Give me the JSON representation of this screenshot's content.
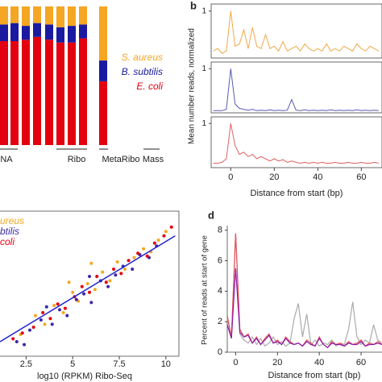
{
  "chart_data": [
    {
      "type": "stacked_bar",
      "categories": [
        null,
        null,
        null,
        null,
        null,
        null,
        null,
        null,
        null
      ],
      "groups": [
        "NA",
        "Ribo",
        "MetaRibo",
        "Mass"
      ],
      "series": [
        {
          "name": "E. coli",
          "color": "#e3000f",
          "values": [
            0.75,
            0.75,
            0.76,
            0.78,
            0.76,
            0.74,
            0.74,
            0.77,
            0.46
          ]
        },
        {
          "name": "B. subtilis",
          "color": "#1a1aa0",
          "values": [
            0.12,
            0.13,
            0.1,
            0.1,
            0.11,
            0.11,
            0.12,
            0.1,
            0.15
          ]
        },
        {
          "name": "S. aureus",
          "color": "#f5a623",
          "values": [
            0.13,
            0.12,
            0.14,
            0.12,
            0.13,
            0.15,
            0.14,
            0.13,
            0.39
          ]
        }
      ],
      "ylim": [
        0,
        1
      ]
    },
    {
      "type": "line_panels",
      "label": "b",
      "x_label": "Distance from start (bp)",
      "y_label": "Mean number reads, normalized",
      "x": [
        -8,
        -6,
        -4,
        -2,
        0,
        2,
        4,
        6,
        8,
        10,
        12,
        14,
        16,
        18,
        20,
        22,
        24,
        26,
        28,
        30,
        32,
        34,
        36,
        38,
        40,
        42,
        44,
        46,
        48,
        50,
        52,
        54,
        56,
        58,
        60,
        62,
        64,
        66,
        68
      ],
      "series": [
        {
          "color": "#f0a848",
          "values": [
            0.15,
            0.2,
            0.1,
            0.15,
            1.0,
            0.25,
            0.3,
            0.6,
            0.2,
            0.65,
            0.25,
            0.2,
            0.5,
            0.2,
            0.25,
            0.15,
            0.35,
            0.15,
            0.2,
            0.25,
            0.15,
            0.3,
            0.2,
            0.15,
            0.2,
            0.15,
            0.3,
            0.15,
            0.2,
            0.15,
            0.25,
            0.2,
            0.15,
            0.3,
            0.2,
            0.15,
            0.25,
            0.2,
            0.15
          ]
        },
        {
          "color": "#5a5ab4",
          "values": [
            0.05,
            0.05,
            0.05,
            0.08,
            1.0,
            0.2,
            0.1,
            0.08,
            0.06,
            0.08,
            0.05,
            0.06,
            0.05,
            0.07,
            0.05,
            0.06,
            0.05,
            0.06,
            0.3,
            0.06,
            0.05,
            0.07,
            0.05,
            0.06,
            0.05,
            0.06,
            0.05,
            0.07,
            0.05,
            0.06,
            0.05,
            0.06,
            0.05,
            0.07,
            0.05,
            0.06,
            0.05,
            0.06,
            0.05
          ]
        },
        {
          "color": "#e06060",
          "values": [
            0.1,
            0.1,
            0.12,
            0.2,
            1.0,
            0.5,
            0.3,
            0.35,
            0.25,
            0.3,
            0.2,
            0.25,
            0.2,
            0.15,
            0.2,
            0.15,
            0.18,
            0.12,
            0.15,
            0.12,
            0.1,
            0.12,
            0.1,
            0.12,
            0.1,
            0.12,
            0.1,
            0.1,
            0.12,
            0.1,
            0.1,
            0.12,
            0.1,
            0.1,
            0.12,
            0.1,
            0.1,
            0.12,
            0.1
          ]
        }
      ],
      "xlim": [
        -9,
        69.5
      ],
      "xticks": [
        0,
        20,
        40,
        60
      ],
      "ylim": [
        0,
        1.15
      ],
      "yticks": [
        1
      ]
    },
    {
      "type": "scatter",
      "x_label": "log10 (RPKM) Ribo-Seq",
      "series": [
        {
          "name": "ureus",
          "color": "#f5a623",
          "x": [
            2.2,
            3.0,
            3.5,
            4.0,
            4.5,
            5.0,
            5.3,
            5.8,
            6.2,
            6.6,
            7.0,
            7.4,
            7.8,
            8.3,
            8.8,
            9.2,
            9.6,
            10.0,
            4.8,
            6.0
          ],
          "values": [
            1.5,
            2.8,
            2.2,
            3.5,
            3.0,
            4.4,
            3.8,
            5.0,
            4.6,
            5.8,
            5.2,
            6.5,
            6.0,
            6.8,
            7.4,
            7.2,
            8.0,
            8.6,
            5.1,
            6.4
          ]
        },
        {
          "name": "btilis",
          "color": "#3a2aa8",
          "x": [
            2.0,
            2.7,
            3.3,
            3.9,
            4.3,
            4.7,
            5.2,
            5.6,
            6.0,
            6.5,
            6.9,
            7.3,
            7.7,
            8.2,
            8.6,
            9.1,
            9.5,
            2.4,
            3.6,
            5.9
          ],
          "values": [
            1.0,
            1.8,
            2.5,
            2.2,
            3.2,
            2.8,
            3.9,
            4.3,
            3.7,
            5.2,
            4.8,
            5.6,
            6.2,
            6.0,
            7.0,
            6.8,
            7.6,
            0.8,
            3.4,
            5.5
          ]
        },
        {
          "name": "coli",
          "color": "#e3000f",
          "x": [
            1.8,
            2.3,
            2.9,
            3.4,
            3.8,
            4.2,
            4.6,
            5.1,
            5.5,
            5.9,
            6.3,
            6.8,
            7.2,
            7.6,
            8.0,
            8.5,
            9.0,
            9.4,
            9.9,
            10.3
          ],
          "values": [
            1.2,
            1.6,
            2.0,
            3.0,
            2.6,
            3.6,
            3.3,
            4.1,
            4.8,
            4.4,
            5.5,
            5.1,
            6.0,
            5.7,
            6.6,
            7.1,
            6.9,
            7.8,
            8.3,
            8.9
          ]
        }
      ],
      "fit_line": {
        "color": "#2222cc",
        "x": [
          1.1,
          10.5
        ],
        "values": [
          1.0,
          8.3
        ]
      },
      "xlim": [
        1.1,
        10.7
      ],
      "xticks": [
        2.5,
        5.0,
        7.5,
        10
      ],
      "ylim": [
        0,
        10
      ]
    },
    {
      "type": "line",
      "label": "d",
      "x_label": "Distance from start (bp)",
      "y_label": "Percent of reads at start of gene",
      "x": [
        -4,
        -2,
        0,
        2,
        4,
        6,
        8,
        10,
        12,
        14,
        16,
        18,
        20,
        22,
        24,
        26,
        28,
        30,
        32,
        34,
        36,
        38,
        40,
        42,
        44,
        46,
        48,
        50,
        52,
        54,
        56,
        58,
        60,
        62,
        64,
        66,
        68,
        70
      ],
      "series": [
        {
          "color": "#aaaaaa",
          "values": [
            2.2,
            1.0,
            7.8,
            1.2,
            0.8,
            0.6,
            1.0,
            0.5,
            0.9,
            0.4,
            0.6,
            1.0,
            0.5,
            0.7,
            0.4,
            0.6,
            2.2,
            3.2,
            1.0,
            2.5,
            0.5,
            0.8,
            0.4,
            0.6,
            0.5,
            0.8,
            0.4,
            0.6,
            0.5,
            1.5,
            3.3,
            1.0,
            0.5,
            0.8,
            0.6,
            1.8,
            0.8,
            0.6
          ]
        },
        {
          "color": "#e8505a",
          "values": [
            2.4,
            1.0,
            7.8,
            1.5,
            1.0,
            1.2,
            0.6,
            1.0,
            0.5,
            0.9,
            1.2,
            0.6,
            0.8,
            0.5,
            1.0,
            0.7,
            0.5,
            0.6,
            0.4,
            0.8,
            0.6,
            0.4,
            1.0,
            0.5,
            0.3,
            0.7,
            0.5,
            0.6,
            0.4,
            0.7,
            0.5,
            0.6,
            0.8,
            0.4,
            0.6,
            0.5,
            0.7,
            0.5
          ]
        },
        {
          "color": "#8a1aa8",
          "values": [
            1.8,
            0.9,
            5.5,
            1.3,
            1.0,
            1.1,
            0.6,
            0.9,
            0.5,
            0.8,
            1.1,
            0.6,
            0.7,
            0.5,
            0.9,
            0.6,
            0.5,
            0.6,
            0.4,
            0.7,
            0.5,
            0.4,
            0.9,
            0.5,
            0.3,
            0.6,
            0.5,
            0.5,
            0.4,
            0.6,
            0.5,
            0.5,
            0.7,
            0.4,
            0.5,
            0.5,
            0.6,
            0.5
          ]
        }
      ],
      "xlim": [
        -4,
        70
      ],
      "xticks": [
        0,
        20,
        40,
        60
      ],
      "ylim": [
        0,
        8.3
      ],
      "yticks": [
        0,
        2,
        4,
        6,
        8
      ]
    }
  ]
}
